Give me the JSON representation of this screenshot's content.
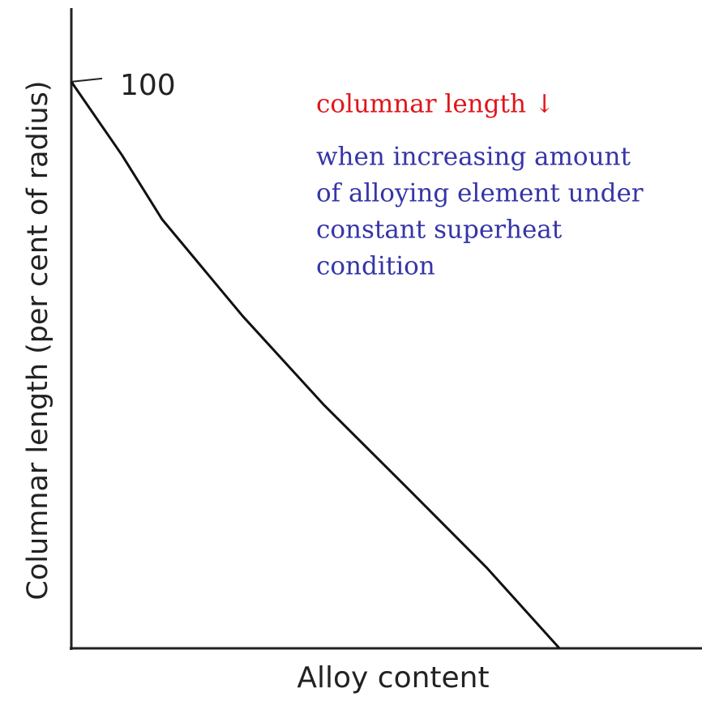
{
  "chart_data": {
    "type": "line",
    "x_label": "Alloy content",
    "y_label": "Columnar length (per cent of radius)",
    "xlim": [
      0,
      100
    ],
    "ylim": [
      0,
      113
    ],
    "yticks": [
      100
    ],
    "series": [
      {
        "name": null,
        "color": "#111111",
        "x": [
          0,
          8.0,
          14.4,
          27.2,
          40.1,
          53.0,
          65.8,
          77.4
        ],
        "values": [
          100,
          87.1,
          75.7,
          58.6,
          42.9,
          28.6,
          14.3,
          0
        ]
      }
    ],
    "annotations": [
      {
        "lines": [
          "columnar length ↓"
        ],
        "color": "#e0151b"
      },
      {
        "lines": [
          "when increasing amount",
          "of alloying element under",
          "constant superheat",
          "condition"
        ],
        "color": "#3535a8"
      }
    ]
  }
}
